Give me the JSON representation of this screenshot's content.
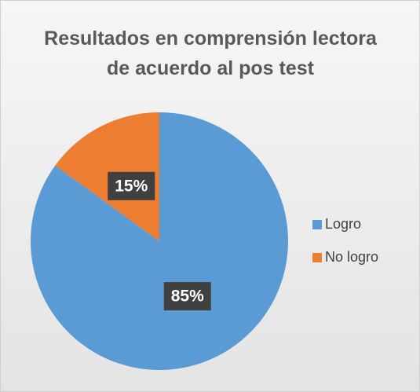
{
  "chart_data": {
    "type": "pie",
    "title": "Resultados en comprensión lectora de acuerdo al pos test",
    "categories": [
      "Logro",
      "No logro"
    ],
    "values": [
      85,
      15
    ],
    "value_labels": [
      "85%",
      "15%"
    ],
    "colors": [
      "#5b9bd5",
      "#ed7d31"
    ],
    "legend": "right"
  }
}
